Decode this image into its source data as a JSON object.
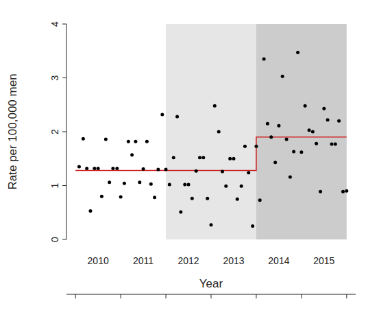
{
  "chart_data": {
    "type": "scatter",
    "x_label": "Year",
    "y_label": "Rate per 100,000 men",
    "color": "#000000",
    "marker": "circle",
    "x": [
      2010.08,
      2010.17,
      2010.25,
      2010.33,
      2010.42,
      2010.5,
      2010.58,
      2010.67,
      2010.75,
      2010.83,
      2010.92,
      2011,
      2011.08,
      2011.17,
      2011.25,
      2011.33,
      2011.42,
      2011.5,
      2011.58,
      2011.67,
      2011.75,
      2011.83,
      2011.92,
      2012,
      2012.08,
      2012.17,
      2012.25,
      2012.33,
      2012.42,
      2012.5,
      2012.58,
      2012.67,
      2012.75,
      2012.83,
      2012.92,
      2013,
      2013.08,
      2013.17,
      2013.25,
      2013.33,
      2013.42,
      2013.5,
      2013.58,
      2013.67,
      2013.75,
      2013.83,
      2013.92,
      2014,
      2014.08,
      2014.17,
      2014.25,
      2014.33,
      2014.42,
      2014.5,
      2014.58,
      2014.67,
      2014.75,
      2014.83,
      2014.92,
      2015,
      2015.08,
      2015.17,
      2015.25,
      2015.33,
      2015.42,
      2015.5,
      2015.58,
      2015.67,
      2015.75,
      2015.83,
      2015.92,
      2016
    ],
    "values": [
      1.35,
      1.87,
      1.32,
      0.53,
      1.32,
      1.32,
      0.8,
      1.86,
      1.06,
      1.32,
      1.32,
      0.79,
      1.04,
      1.82,
      1.57,
      1.82,
      1.06,
      1.31,
      1.82,
      1.03,
      0.78,
      1.3,
      2.32,
      1.3,
      1.02,
      1.52,
      2.28,
      0.51,
      1.02,
      1.02,
      0.76,
      1.27,
      1.52,
      1.52,
      0.76,
      0.27,
      2.48,
      2.0,
      1.26,
      0.99,
      1.5,
      1.5,
      0.75,
      0.99,
      1.73,
      1.24,
      0.25,
      1.73,
      0.73,
      3.35,
      2.15,
      1.9,
      1.43,
      2.11,
      3.03,
      1.86,
      1.16,
      1.63,
      3.47,
      1.62,
      2.48,
      2.03,
      2.0,
      1.78,
      0.89,
      2.43,
      2.22,
      1.77,
      1.77,
      2.2,
      0.89,
      0.9
    ],
    "step_line": {
      "x": [
        2010,
        2014,
        2014,
        2016
      ],
      "values": [
        1.28,
        1.28,
        1.9,
        1.9
      ],
      "color": "#cc2222"
    },
    "shaded_regions": [
      {
        "x": [
          2012,
          2014
        ],
        "color": "#e6e6e6"
      },
      {
        "x": [
          2014,
          2016
        ],
        "color": "#cccccc"
      }
    ],
    "xlim": [
      2009.8,
      2016.2
    ],
    "xtick_marks": [
      2010,
      2011,
      2012,
      2013,
      2014,
      2015,
      2016
    ],
    "xticks": [
      {
        "value": 2010.5,
        "label": "2010"
      },
      {
        "value": 2011.5,
        "label": "2011"
      },
      {
        "value": 2012.5,
        "label": "2012"
      },
      {
        "value": 2013.5,
        "label": "2013"
      },
      {
        "value": 2014.5,
        "label": "2014"
      },
      {
        "value": 2015.5,
        "label": "2015"
      }
    ],
    "ylim": [
      0,
      4
    ],
    "yticks": [
      0,
      1,
      2,
      3,
      4
    ],
    "grid": false
  }
}
